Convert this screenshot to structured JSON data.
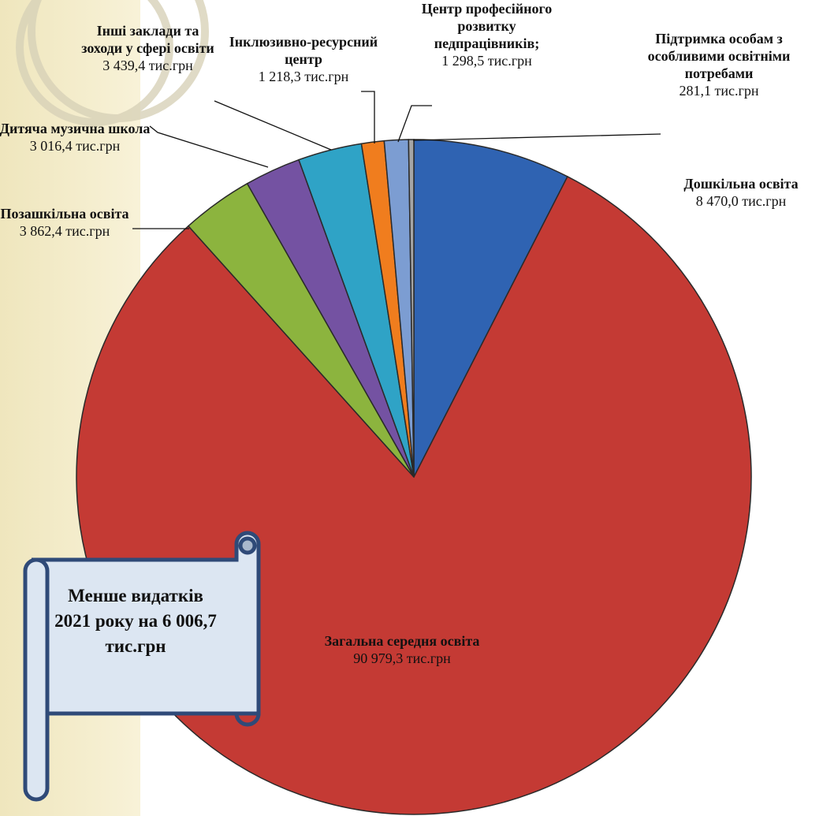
{
  "chart_data": {
    "type": "pie",
    "categories": [
      "Дошкільна освіта",
      "Загальна середня освіта",
      "Позашкільна освіта",
      "Дитяча музична школа",
      "Інші заклади та зоходи  у сфері освіти",
      "Інклюзивно-ресурсний центр",
      "Центр професійного розвитку педпрацівників;",
      "Підтримка особам з особливими освітніми потребами"
    ],
    "values": [
      8470.0,
      90979.3,
      3862.4,
      3016.4,
      3439.4,
      1218.3,
      1298.5,
      281.1
    ],
    "value_labels": [
      "8 470,0 тис.грн",
      "90 979,3 тис.грн",
      "3 862,4 тис.грн",
      "3 016,4 тис.грн",
      "3 439,4 тис.грн",
      "1 218,3 тис.грн",
      "1 298,5 тис.грн",
      "281,1 тис.грн"
    ],
    "colors": [
      "#2f63b2",
      "#c43a34",
      "#8cb43e",
      "#7452a2",
      "#2fa3c6",
      "#f07d1e",
      "#7c9dd2",
      "#a5a5a5"
    ],
    "note": "Менше видатків 2021 року на 6 006,7 тис.грн"
  }
}
